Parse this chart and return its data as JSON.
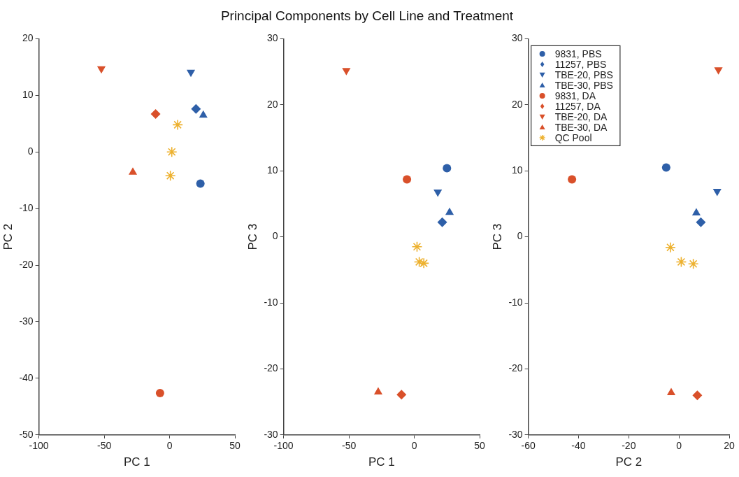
{
  "chart_data": [
    {
      "type": "scatter",
      "xlabel": "PC 1",
      "ylabel": "PC 2",
      "xlim": [
        -100,
        50
      ],
      "xticks": [
        -100,
        -50,
        0,
        50
      ],
      "ylim": [
        -50,
        20
      ],
      "yticks": [
        -50,
        -40,
        -30,
        -20,
        -10,
        0,
        10,
        20
      ],
      "grid": false,
      "legend": false,
      "series": [
        {
          "color": "#2e5fa8",
          "marker": "circle",
          "x": [
            23.6
          ],
          "values": [
            -5.6
          ]
        },
        {
          "color": "#2e5fa8",
          "marker": "diamond",
          "x": [
            20.2
          ],
          "values": [
            7.6
          ]
        },
        {
          "color": "#2e5fa8",
          "marker": "triangle-down",
          "x": [
            16.3
          ],
          "values": [
            14.1
          ]
        },
        {
          "color": "#2e5fa8",
          "marker": "triangle",
          "x": [
            25.8
          ],
          "values": [
            6.5
          ]
        },
        {
          "color": "#d9502a",
          "marker": "circle",
          "x": [
            -7.3
          ],
          "values": [
            -42.6
          ]
        },
        {
          "color": "#d9502a",
          "marker": "diamond",
          "x": [
            -10.7
          ],
          "values": [
            6.7
          ]
        },
        {
          "color": "#d9502a",
          "marker": "triangle-down",
          "x": [
            -52.2
          ],
          "values": [
            14.7
          ]
        },
        {
          "color": "#d9502a",
          "marker": "triangle",
          "x": [
            -28.1
          ],
          "values": [
            -3.6
          ]
        },
        {
          "color": "#edb12f",
          "marker": "cross",
          "x": [
            6.2,
            1.7,
            0.6
          ],
          "values": [
            4.8,
            0,
            -4.2
          ]
        }
      ]
    },
    {
      "type": "scatter",
      "title": "Principal Components by Cell Line and Treatment",
      "xlabel": "PC 1",
      "ylabel": "PC 3",
      "xlim": [
        -100,
        50
      ],
      "xticks": [
        -100,
        -50,
        0,
        50
      ],
      "ylim": [
        -30,
        30
      ],
      "yticks": [
        -30,
        -20,
        -10,
        0,
        10,
        20,
        30
      ],
      "grid": false,
      "legend": false,
      "series": [
        {
          "color": "#2e5fa8",
          "marker": "circle",
          "x": [
            25
          ],
          "values": [
            10.4
          ]
        },
        {
          "color": "#2e5fa8",
          "marker": "diamond",
          "x": [
            21.4
          ],
          "values": [
            2.2
          ]
        },
        {
          "color": "#2e5fa8",
          "marker": "triangle-down",
          "x": [
            18
          ],
          "values": [
            6.8
          ]
        },
        {
          "color": "#2e5fa8",
          "marker": "triangle",
          "x": [
            27
          ],
          "values": [
            3.7
          ]
        },
        {
          "color": "#d9502a",
          "marker": "circle",
          "x": [
            -5.6
          ],
          "values": [
            8.7
          ]
        },
        {
          "color": "#d9502a",
          "marker": "diamond",
          "x": [
            -9.8
          ],
          "values": [
            -23.9
          ]
        },
        {
          "color": "#d9502a",
          "marker": "triangle-down",
          "x": [
            -52
          ],
          "values": [
            25.2
          ]
        },
        {
          "color": "#d9502a",
          "marker": "triangle",
          "x": [
            -27.6
          ],
          "values": [
            -23.5
          ]
        },
        {
          "color": "#edb12f",
          "marker": "cross",
          "x": [
            2.1,
            3.8,
            7.3
          ],
          "values": [
            -1.5,
            -3.8,
            -4.0
          ]
        }
      ]
    },
    {
      "type": "scatter",
      "xlabel": "PC 2",
      "ylabel": "PC 3",
      "xlim": [
        -60,
        20
      ],
      "xticks": [
        -60,
        -40,
        -20,
        0,
        20
      ],
      "ylim": [
        -30,
        30
      ],
      "yticks": [
        -30,
        -20,
        -10,
        0,
        10,
        20,
        30
      ],
      "grid": false,
      "legend": "top left",
      "series": [
        {
          "name": "9831, PBS",
          "color": "#2e5fa8",
          "marker": "circle",
          "x": [
            -5.1
          ],
          "values": [
            10.5
          ]
        },
        {
          "name": "11257, PBS",
          "color": "#2e5fa8",
          "marker": "diamond",
          "x": [
            8.7
          ],
          "values": [
            2.2
          ]
        },
        {
          "name": "TBE-20, PBS",
          "color": "#2e5fa8",
          "marker": "triangle-down",
          "x": [
            15.2
          ],
          "values": [
            6.9
          ]
        },
        {
          "name": "TBE-30, PBS",
          "color": "#2e5fa8",
          "marker": "triangle",
          "x": [
            6.9
          ],
          "values": [
            3.6
          ]
        },
        {
          "name": "9831, DA",
          "color": "#d9502a",
          "marker": "circle",
          "x": [
            -42.6
          ],
          "values": [
            8.7
          ]
        },
        {
          "name": "11257, DA",
          "color": "#d9502a",
          "marker": "diamond",
          "x": [
            7.3
          ],
          "values": [
            -24
          ]
        },
        {
          "name": "TBE-20, DA",
          "color": "#d9502a",
          "marker": "triangle-down",
          "x": [
            15.7
          ],
          "values": [
            25.3
          ]
        },
        {
          "name": "TBE-30, DA",
          "color": "#d9502a",
          "marker": "triangle",
          "x": [
            -3.1
          ],
          "values": [
            -23.6
          ]
        },
        {
          "name": "QC Pool",
          "color": "#edb12f",
          "marker": "cross",
          "x": [
            -3.4,
            0.9,
            5.7
          ],
          "values": [
            -1.6,
            -3.8,
            -4.1
          ]
        }
      ]
    }
  ]
}
